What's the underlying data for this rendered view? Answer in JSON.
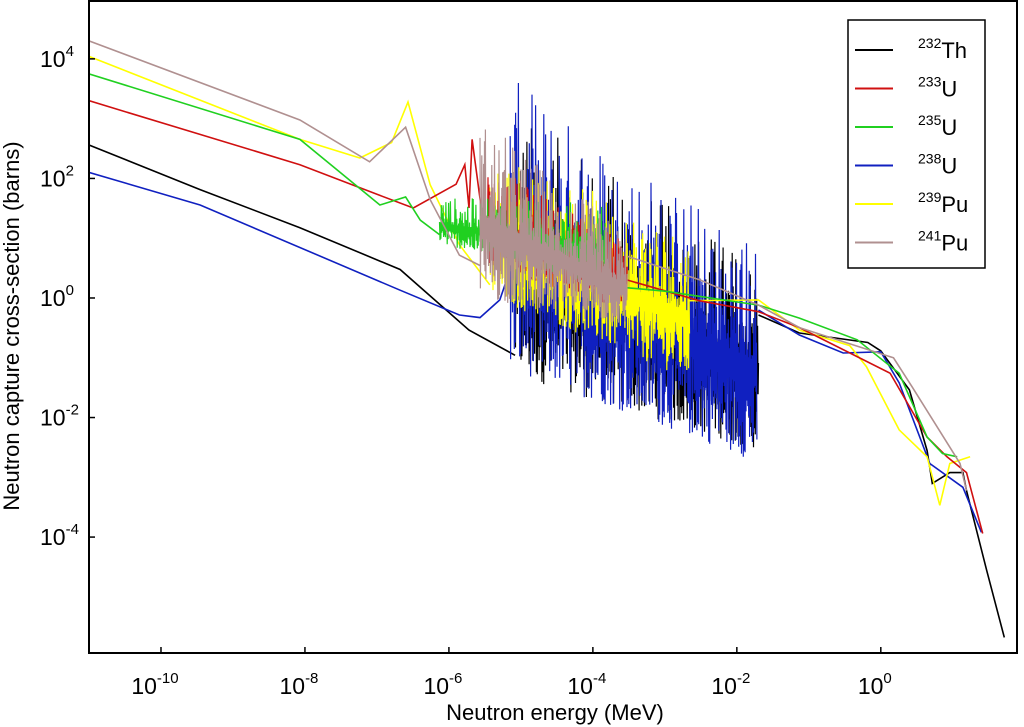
{
  "chart_data": {
    "type": "line",
    "title": "",
    "xlabel": "Neutron energy (MeV)",
    "ylabel": "Neutron capture cross-section (barns)",
    "xscale": "log",
    "yscale": "log",
    "xlim": [
      1e-11,
      78
    ],
    "ylim": [
      1.15e-06,
      93000
    ],
    "grid": false,
    "legend_position": "top-right",
    "x_ticks": [
      {
        "value": 1e-10,
        "base": "10",
        "exp": "-10"
      },
      {
        "value": 1e-08,
        "base": "10",
        "exp": "-8"
      },
      {
        "value": 1e-06,
        "base": "10",
        "exp": "-6"
      },
      {
        "value": 0.0001,
        "base": "10",
        "exp": "-4"
      },
      {
        "value": 0.01,
        "base": "10",
        "exp": "-2"
      },
      {
        "value": 1,
        "base": "10",
        "exp": "0"
      }
    ],
    "y_ticks": [
      {
        "value": 10000.0,
        "base": "10",
        "exp": "4"
      },
      {
        "value": 100.0,
        "base": "10",
        "exp": "2"
      },
      {
        "value": 1,
        "base": "10",
        "exp": "0"
      },
      {
        "value": 0.01,
        "base": "10",
        "exp": "-2"
      },
      {
        "value": 0.0001,
        "base": "10",
        "exp": "-4"
      }
    ],
    "series": [
      {
        "name": "232Th",
        "mass": "232",
        "element": "Th",
        "color": "#000000",
        "smooth_low": [
          [
            1e-11,
            363
          ],
          [
            3.5e-10,
            65
          ],
          [
            8.5e-09,
            15
          ],
          [
            2.1e-07,
            3.0
          ],
          [
            1.9e-06,
            0.29
          ],
          [
            8.3e-06,
            0.11
          ]
        ],
        "resonance_band": {
          "e_min": 8.3e-06,
          "e_max": 0.02,
          "upper": [
            1400,
            4.4
          ],
          "lower": [
            0.05,
            0.0028
          ]
        },
        "smooth_high": [
          [
            0.02,
            0.52
          ],
          [
            0.074,
            0.26
          ],
          [
            0.66,
            0.18
          ],
          [
            1.0,
            0.13
          ],
          [
            2.5,
            0.029
          ],
          [
            4.4,
            0.0028
          ],
          [
            5.2,
            0.00079
          ],
          [
            9.1,
            0.0012
          ],
          [
            13.8,
            0.0012
          ],
          [
            15.5,
            0.0006
          ],
          [
            29.5,
            2.8e-05
          ],
          [
            52,
            2.1e-06
          ]
        ]
      },
      {
        "name": "238U",
        "mass": "238",
        "element": "U",
        "color": "#1020c0",
        "smooth_low": [
          [
            1e-11,
            126
          ],
          [
            3.5e-10,
            36
          ],
          [
            2.1e-07,
            1.35
          ],
          [
            1.4e-06,
            0.52
          ],
          [
            2.7e-06,
            0.47
          ],
          [
            5.1e-06,
            0.93
          ],
          [
            7.1e-06,
            3.0
          ]
        ],
        "resonance_band": {
          "e_min": 7.1e-06,
          "e_max": 0.019,
          "upper": [
            5000,
            9.3
          ],
          "lower": [
            0.063,
            0.0018
          ]
        },
        "smooth_high": [
          [
            0.02,
            0.63
          ],
          [
            0.074,
            0.24
          ],
          [
            0.3,
            0.12
          ],
          [
            1.0,
            0.126
          ],
          [
            1.8,
            0.038
          ],
          [
            4.8,
            0.0017
          ],
          [
            13.8,
            0.00068
          ],
          [
            25,
            0.00012
          ]
        ]
      },
      {
        "name": "239Pu",
        "mass": "239",
        "element": "Pu",
        "color": "#ffff00",
        "smooth_low": [
          [
            1e-11,
            11000
          ],
          [
            8.5e-09,
            450
          ],
          [
            5.8e-08,
            220
          ],
          [
            1.6e-07,
            400
          ],
          [
            2.7e-07,
            1900
          ],
          [
            5.5e-07,
            78
          ],
          [
            1.4e-06,
            7.8
          ],
          [
            3.7e-06,
            1.66
          ]
        ],
        "resonance_band": {
          "e_min": 3.7e-06,
          "e_max": 0.0022,
          "upper": [
            320,
            14
          ],
          "lower": [
            1.0,
            0.043
          ]
        },
        "smooth_high": [
          [
            0.0022,
            0.9
          ],
          [
            0.02,
            0.93
          ],
          [
            0.074,
            0.29
          ],
          [
            0.37,
            0.16
          ],
          [
            0.63,
            0.071
          ],
          [
            1.8,
            0.0062
          ],
          [
            4.4,
            0.0022
          ],
          [
            6.6,
            0.00034
          ],
          [
            9.1,
            0.0017
          ],
          [
            17.4,
            0.0022
          ]
        ]
      },
      {
        "name": "233U",
        "mass": "233",
        "element": "U",
        "color": "#d01010",
        "smooth_low": [
          [
            1e-11,
            2000
          ],
          [
            8.5e-09,
            170
          ],
          [
            1.1e-07,
            52
          ],
          [
            3.2e-07,
            32
          ],
          [
            1.26e-06,
            80
          ],
          [
            1.66e-06,
            170
          ],
          [
            1.9e-06,
            32
          ],
          [
            2.1e-06,
            450
          ],
          [
            3.2e-06,
            10
          ]
        ],
        "resonance_band": {
          "e_min": 3.2e-06,
          "e_max": 0.0003,
          "upper": [
            200,
            10
          ],
          "lower": [
            3.2,
            0.63
          ]
        },
        "smooth_high": [
          [
            0.0003,
            2.0
          ],
          [
            0.003,
            0.9
          ],
          [
            0.02,
            0.59
          ],
          [
            0.074,
            0.32
          ],
          [
            1.35,
            0.055
          ],
          [
            4.4,
            0.0047
          ],
          [
            8.3,
            0.0022
          ],
          [
            15.5,
            0.0012
          ],
          [
            26,
            0.000115
          ]
        ]
      },
      {
        "name": "235U",
        "mass": "235",
        "element": "U",
        "color": "#20d020",
        "smooth_low": [
          [
            1e-11,
            5600
          ],
          [
            8.5e-09,
            450
          ],
          [
            1.1e-07,
            36
          ],
          [
            2.5e-07,
            49
          ],
          [
            4e-07,
            20
          ],
          [
            7.4e-07,
            11.5
          ]
        ],
        "resonance_band": {
          "e_min": 7.4e-07,
          "e_max": 0.00015,
          "upper": [
            50,
            40
          ],
          "lower": [
            8,
            1.6
          ]
        },
        "smooth_high": [
          [
            0.00015,
            1.6
          ],
          [
            0.001,
            1.3
          ],
          [
            0.02,
            0.76
          ],
          [
            0.074,
            0.46
          ],
          [
            0.47,
            0.2
          ],
          [
            1.8,
            0.055
          ],
          [
            4.4,
            0.0047
          ],
          [
            7.2,
            0.0025
          ],
          [
            11.5,
            0.0022
          ]
        ]
      },
      {
        "name": "241Pu",
        "mass": "241",
        "element": "Pu",
        "color": "#b09090",
        "smooth_low": [
          [
            1e-11,
            20000
          ],
          [
            8.5e-09,
            950
          ],
          [
            7.9e-08,
            190
          ],
          [
            2.5e-07,
            720
          ],
          [
            5.5e-07,
            44
          ],
          [
            1.4e-06,
            5.2
          ],
          [
            2.7e-06,
            3.5
          ]
        ],
        "resonance_band": {
          "e_min": 2.7e-06,
          "e_max": 0.0003,
          "upper": [
            1150,
            12.6
          ],
          "lower": [
            1.0,
            0.32
          ]
        },
        "smooth_high": [
          [
            0.0003,
            5.0
          ],
          [
            0.0031,
            2.0
          ],
          [
            0.02,
            0.76
          ],
          [
            0.074,
            0.32
          ],
          [
            1.5,
            0.1
          ],
          [
            2.75,
            0.032
          ],
          [
            12.6,
            0.0017
          ],
          [
            15.5,
            0.0006
          ]
        ]
      }
    ],
    "legend_order": [
      0,
      3,
      4,
      1,
      2,
      5
    ]
  }
}
